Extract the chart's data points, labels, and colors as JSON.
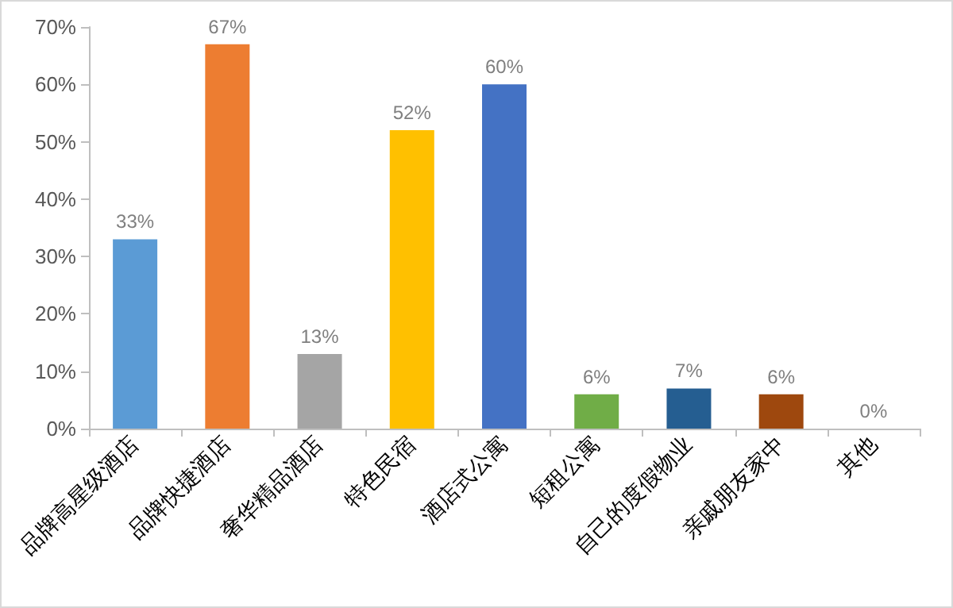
{
  "chart_data": {
    "type": "bar",
    "categories": [
      "品牌高星级酒店",
      "品牌快捷酒店",
      "奢华精品酒店",
      "特色民宿",
      "酒店式公寓",
      "短租公寓",
      "自己的度假物业",
      "亲戚朋友家中",
      "其他"
    ],
    "values": [
      33,
      67,
      13,
      52,
      60,
      6,
      7,
      6,
      0
    ],
    "value_labels": [
      "33%",
      "67%",
      "13%",
      "52%",
      "60%",
      "6%",
      "7%",
      "6%",
      "0%"
    ],
    "colors": [
      "#5b9bd5",
      "#ed7d31",
      "#a5a5a5",
      "#ffc000",
      "#4472c4",
      "#70ad47",
      "#255e91",
      "#9e480e",
      "#7f7f7f"
    ],
    "ylim": [
      0,
      70
    ],
    "yticks": [
      {
        "value": 0,
        "label": "0%"
      },
      {
        "value": 10,
        "label": "10%"
      },
      {
        "value": 20,
        "label": "20%"
      },
      {
        "value": 30,
        "label": "30%"
      },
      {
        "value": 40,
        "label": "40%"
      },
      {
        "value": 50,
        "label": "50%"
      },
      {
        "value": 60,
        "label": "60%"
      },
      {
        "value": 70,
        "label": "70%"
      }
    ],
    "grid": false
  }
}
